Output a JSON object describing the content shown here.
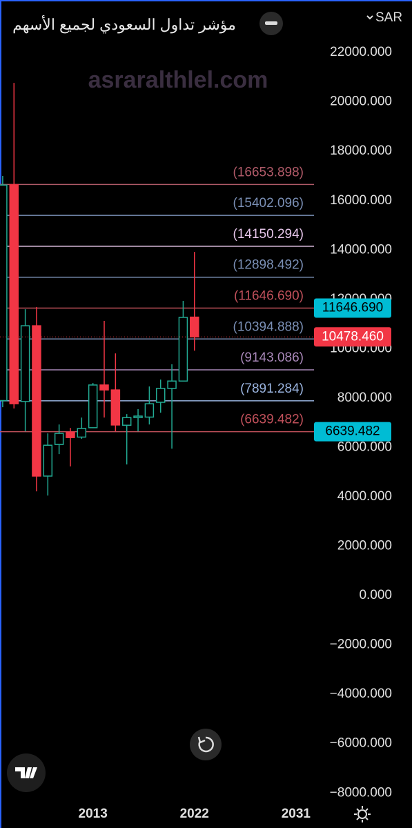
{
  "chart_data": {
    "type": "candlestick",
    "title": "مؤشر تداول السعودي لجميع الأسهم",
    "currency": "SAR",
    "watermark": "asraralthlel.com",
    "x": [
      2005,
      2006,
      2007,
      2008,
      2009,
      2010,
      2011,
      2012,
      2013,
      2014,
      2015,
      2016,
      2017,
      2018,
      2019,
      2020,
      2021,
      2022
    ],
    "open": [
      7900,
      16650,
      7860,
      10930,
      4840,
      6120,
      6620,
      6420,
      6800,
      8530,
      8330,
      6900,
      7210,
      7230,
      7830,
      8390,
      8690,
      11280
    ],
    "high": [
      17000,
      20770,
      11600,
      11690,
      6570,
      6930,
      6790,
      7210,
      8610,
      11130,
      9810,
      7350,
      7550,
      8470,
      8750,
      9370,
      11940,
      13920
    ],
    "low": [
      7630,
      7580,
      6650,
      4220,
      4050,
      5730,
      5230,
      6350,
      6780,
      7210,
      6650,
      5310,
      6650,
      6930,
      7410,
      5950,
      8690,
      9920
    ],
    "close": [
      16630,
      7770,
      10930,
      4840,
      6090,
      6570,
      6400,
      6770,
      8530,
      8330,
      6910,
      7210,
      7270,
      7770,
      8390,
      8690,
      11270,
      10478.46
    ],
    "up_color": "#22ab94",
    "down_color": "#f23645",
    "levels": [
      {
        "value": 16653.898,
        "label": "(16653.898)",
        "color": "#b05a68"
      },
      {
        "value": 15402.096,
        "label": "(15402.096)",
        "color": "#7a8fb5"
      },
      {
        "value": 14150.294,
        "label": "(14150.294)",
        "color": "#e6c6ea"
      },
      {
        "value": 12898.492,
        "label": "(12898.492)",
        "color": "#7a8fb5"
      },
      {
        "value": 11646.69,
        "label": "(11646.690)",
        "color": "#c0505a"
      },
      {
        "value": 10394.888,
        "label": "(10394.888)",
        "color": "#7a8fb5"
      },
      {
        "value": 9143.086,
        "label": "(9143.086)",
        "color": "#a887b8"
      },
      {
        "value": 7891.284,
        "label": "(7891.284)",
        "color": "#9ab4e0"
      },
      {
        "value": 6639.482,
        "label": "(6639.482)",
        "color": "#c0505a"
      }
    ],
    "price_badges": [
      {
        "value": 11646.69,
        "label": "11646.690",
        "color": "#00bcd4"
      },
      {
        "value": 10478.46,
        "label": "10478.460",
        "color": "#f23645"
      },
      {
        "value": 6639.482,
        "label": "6639.482",
        "color": "#00bcd4"
      }
    ],
    "ylim": [
      23010,
      -8300
    ],
    "yticks": [
      {
        "value": 22000,
        "label": "22000.000"
      },
      {
        "value": 20000,
        "label": "20000.000"
      },
      {
        "value": 18000,
        "label": "18000.000"
      },
      {
        "value": 16000,
        "label": "16000.000"
      },
      {
        "value": 14000,
        "label": "14000.000"
      },
      {
        "value": 12000,
        "label": "12000.000"
      },
      {
        "value": 10000,
        "label": "10000.000"
      },
      {
        "value": 8000,
        "label": "8000.000"
      },
      {
        "value": 6000,
        "label": "6000.000"
      },
      {
        "value": 4000,
        "label": "4000.000"
      },
      {
        "value": 2000,
        "label": "2000.000"
      },
      {
        "value": 0,
        "label": "0.000"
      },
      {
        "value": -2000,
        "label": "−2000.000"
      },
      {
        "value": -4000,
        "label": "−4000.000"
      },
      {
        "value": -6000,
        "label": "−6000.000"
      },
      {
        "value": -8000,
        "label": "−8000.000"
      }
    ],
    "xlim": [
      2004.76,
      2032.6
    ],
    "xticks": [
      2013,
      2022,
      2031
    ]
  }
}
